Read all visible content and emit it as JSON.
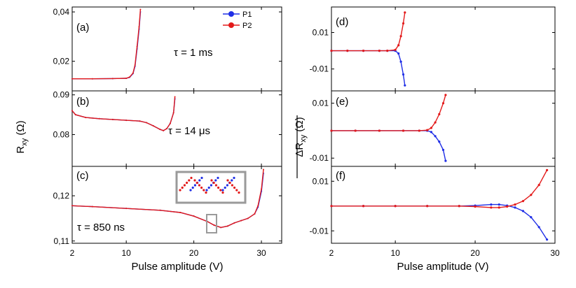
{
  "colors": {
    "p1": "#1f2ee6",
    "p2": "#e31a1a",
    "inset_box": "#9a9a9a"
  },
  "legend": {
    "p1": "P1",
    "p2": "P2"
  },
  "left": {
    "xlabel": "Pulse amplitude (V)",
    "ylabel_main": "R",
    "ylabel_sub": "xy",
    "ylabel_unit": " (Ω)",
    "xlim": [
      2,
      33
    ],
    "xticks": [
      "2",
      "10",
      "20",
      "30"
    ]
  },
  "right": {
    "xlabel": "Pulse amplitude (V)",
    "ylabel_main": "ΔR",
    "ylabel_sub": "xy",
    "ylabel_unit": " (Ω)",
    "xlim": [
      2,
      30
    ],
    "xticks": [
      "2",
      "10",
      "20",
      "30"
    ]
  },
  "chart_data": [
    {
      "panel": "(a)",
      "type": "line",
      "annotation": "τ = 1 ms",
      "ylim": [
        0.008,
        0.042
      ],
      "yticks": [
        "0,02",
        "0,04"
      ],
      "ytick_values": [
        0.02,
        0.04
      ],
      "series": [
        {
          "name": "P1",
          "x": [
            2,
            5,
            8,
            10,
            10.5,
            11,
            11.3,
            11.6,
            11.9,
            12.1
          ],
          "y": [
            0.0129,
            0.0129,
            0.013,
            0.0131,
            0.0135,
            0.015,
            0.018,
            0.025,
            0.033,
            0.04
          ]
        },
        {
          "name": "P2",
          "x": [
            2,
            5,
            8,
            10,
            10.5,
            11,
            11.3,
            11.6,
            11.9,
            12.1
          ],
          "y": [
            0.0129,
            0.0129,
            0.013,
            0.0131,
            0.0136,
            0.0152,
            0.0185,
            0.026,
            0.034,
            0.041
          ]
        }
      ]
    },
    {
      "panel": "(b)",
      "type": "line",
      "annotation": "τ = 14 μs",
      "ylim": [
        0.072,
        0.091
      ],
      "yticks": [
        "0.08",
        "0.09"
      ],
      "ytick_values": [
        0.08,
        0.09
      ],
      "series": [
        {
          "name": "P1",
          "x": [
            2,
            2.5,
            4,
            6,
            8,
            10,
            12,
            13,
            14,
            15,
            15.5,
            16,
            16.5,
            17,
            17.2
          ],
          "y": [
            0.086,
            0.085,
            0.0843,
            0.084,
            0.0838,
            0.0836,
            0.0834,
            0.083,
            0.0822,
            0.0813,
            0.081,
            0.0815,
            0.0828,
            0.0855,
            0.089
          ]
        },
        {
          "name": "P2",
          "x": [
            2,
            2.5,
            4,
            6,
            8,
            10,
            12,
            13,
            14,
            15,
            15.5,
            16,
            16.5,
            17,
            17.2
          ],
          "y": [
            0.086,
            0.085,
            0.0843,
            0.084,
            0.0838,
            0.0836,
            0.0834,
            0.083,
            0.0822,
            0.0813,
            0.081,
            0.0815,
            0.0828,
            0.0855,
            0.0895
          ]
        }
      ]
    },
    {
      "panel": "(c)",
      "type": "line",
      "annotation": "τ = 850 ns",
      "ylim": [
        0.1095,
        0.1265
      ],
      "yticks": [
        "0,11",
        "0,12"
      ],
      "ytick_values": [
        0.11,
        0.12
      ],
      "series": [
        {
          "name": "P1",
          "x": [
            2,
            5,
            10,
            15,
            18,
            20,
            22,
            23,
            24,
            25,
            26,
            27,
            28,
            29,
            29.5,
            30,
            30.3
          ],
          "y": [
            0.1178,
            0.1176,
            0.1172,
            0.1168,
            0.1163,
            0.1155,
            0.1143,
            0.1135,
            0.113,
            0.1133,
            0.114,
            0.1145,
            0.115,
            0.116,
            0.1175,
            0.121,
            0.125
          ]
        },
        {
          "name": "P2",
          "x": [
            2,
            5,
            10,
            15,
            18,
            20,
            22,
            23,
            24,
            25,
            26,
            27,
            28,
            29,
            29.5,
            30,
            30.3
          ],
          "y": [
            0.1178,
            0.1176,
            0.1172,
            0.1168,
            0.1163,
            0.1155,
            0.1143,
            0.1135,
            0.113,
            0.1133,
            0.114,
            0.1145,
            0.115,
            0.116,
            0.1178,
            0.1215,
            0.1258
          ]
        }
      ]
    },
    {
      "panel": "(d)",
      "type": "line",
      "ylim": [
        -0.022,
        0.024
      ],
      "yticks": [
        "0.01",
        "-0.01"
      ],
      "ytick_values": [
        0.01,
        -0.01
      ],
      "series": [
        {
          "name": "P1",
          "x": [
            2,
            4,
            6,
            8,
            9,
            10,
            10.4,
            10.7,
            11,
            11.2
          ],
          "y": [
            0,
            0,
            0,
            0,
            0,
            0,
            -0.0015,
            -0.006,
            -0.013,
            -0.019
          ]
        },
        {
          "name": "P2",
          "x": [
            2,
            4,
            6,
            8,
            9,
            10,
            10.4,
            10.7,
            11,
            11.2
          ],
          "y": [
            0,
            0,
            0,
            0,
            0,
            0.0005,
            0.003,
            0.008,
            0.015,
            0.021
          ]
        }
      ]
    },
    {
      "panel": "(e)",
      "type": "line",
      "ylim": [
        -0.013,
        0.0145
      ],
      "yticks": [
        "0.01",
        "-0.01"
      ],
      "ytick_values": [
        0.01,
        -0.01
      ],
      "series": [
        {
          "name": "P1",
          "x": [
            2,
            5,
            8,
            11,
            13,
            14,
            14.5,
            15,
            15.5,
            16,
            16.3
          ],
          "y": [
            0,
            0,
            0,
            0,
            0,
            0,
            -0.0005,
            -0.002,
            -0.004,
            -0.007,
            -0.011
          ]
        },
        {
          "name": "P2",
          "x": [
            2,
            5,
            8,
            11,
            13,
            14,
            14.5,
            15,
            15.5,
            16,
            16.3
          ],
          "y": [
            0,
            0,
            0,
            0,
            0,
            0.0002,
            0.001,
            0.003,
            0.006,
            0.01,
            0.013
          ]
        }
      ]
    },
    {
      "panel": "(f)",
      "type": "line",
      "ylim": [
        -0.015,
        0.016
      ],
      "yticks": [
        "0.01",
        "-0.01"
      ],
      "ytick_values": [
        0.01,
        -0.01
      ],
      "series": [
        {
          "name": "P1",
          "x": [
            2,
            6,
            10,
            14,
            18,
            20,
            22,
            23,
            24,
            25,
            26,
            27,
            28,
            29
          ],
          "y": [
            0,
            0,
            0,
            0,
            0,
            0.0002,
            0.0006,
            0.0006,
            0.0002,
            -0.0006,
            -0.002,
            -0.0045,
            -0.0085,
            -0.0135
          ]
        },
        {
          "name": "P2",
          "x": [
            2,
            6,
            10,
            14,
            18,
            20,
            22,
            23,
            24,
            25,
            26,
            27,
            28,
            29
          ],
          "y": [
            0,
            0,
            0,
            0,
            0,
            -0.0002,
            -0.0006,
            -0.0006,
            -0.0002,
            0.0006,
            0.002,
            0.0045,
            0.0085,
            0.0145
          ]
        }
      ]
    }
  ]
}
